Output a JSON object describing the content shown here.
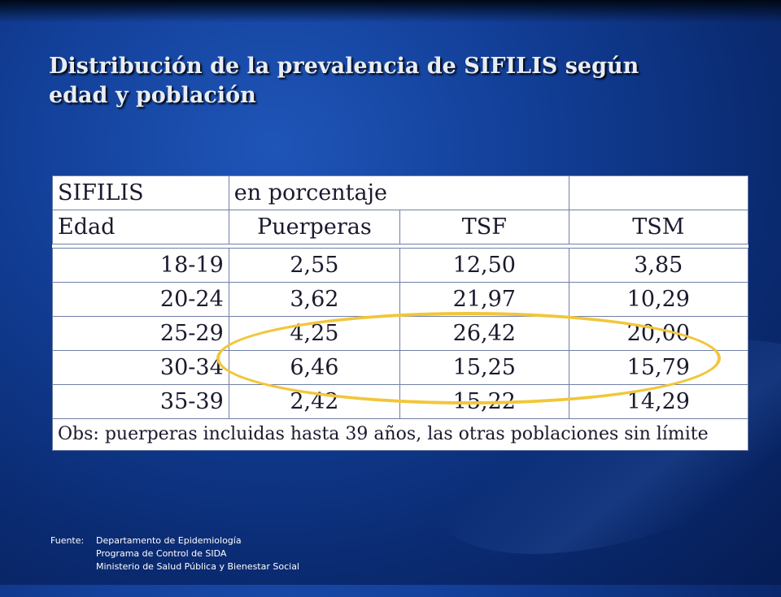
{
  "slide": {
    "title_line1": "Distribución de la prevalencia de SIFILIS según",
    "title_line2": "edad y población"
  },
  "table": {
    "header1": [
      "SIFILIS",
      "en porcentaje",
      "",
      ""
    ],
    "header2": [
      "Edad",
      "Puerperas",
      "TSF",
      "TSM"
    ],
    "rows": [
      [
        "18-19",
        "2,55",
        "12,50",
        "3,85"
      ],
      [
        "20-24",
        "3,62",
        "21,97",
        "10,29"
      ],
      [
        "25-29",
        "4,25",
        "26,42",
        "20,00"
      ],
      [
        "30-34",
        "6,46",
        "15,25",
        "15,79"
      ],
      [
        "35-39",
        "2,42",
        "15,22",
        "14,29"
      ]
    ],
    "note": "Obs: puerperas incluidas hasta 39 años, las otras poblaciones sin límite"
  },
  "highlight": {
    "color": "#f2c63a"
  },
  "footer": {
    "label": "Fuente:",
    "lines": [
      "Departamento de Epidemiología",
      "Programa de Control  de SIDA",
      "Ministerio de Salud Pública y Bienestar Social"
    ]
  }
}
